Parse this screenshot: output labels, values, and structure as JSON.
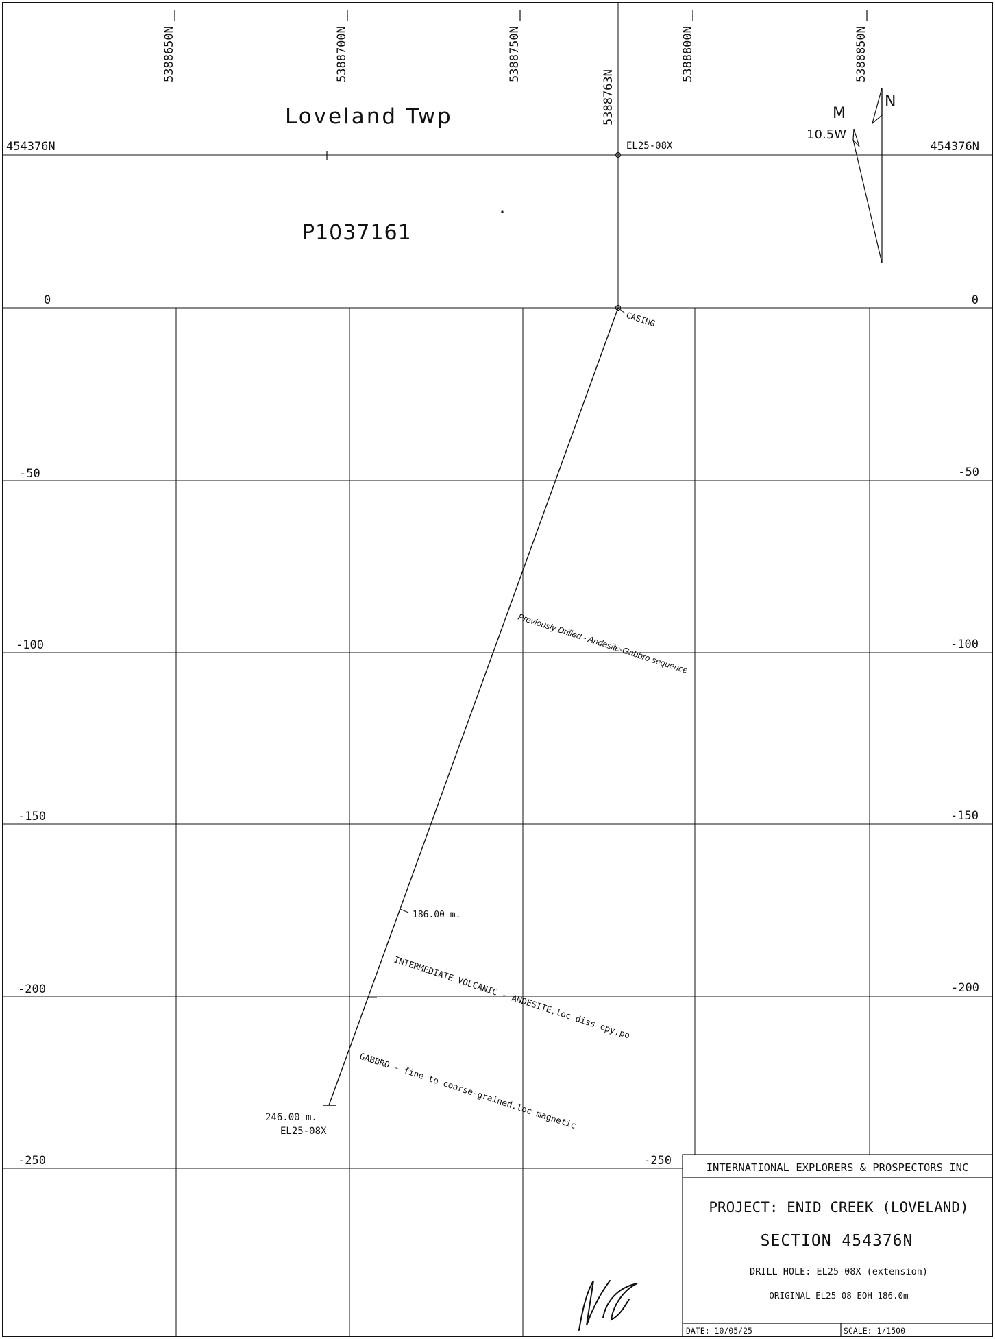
{
  "colors": {
    "ink": "#111111",
    "paper": "#ffffff"
  },
  "top_easting_labels": [
    "5388650N",
    "5388700N",
    "5388750N",
    "5388763N",
    "5388800N",
    "5388850N"
  ],
  "section_left": "454376N",
  "section_right": "454376N",
  "township": "Loveland Twp",
  "claim": "P1037161",
  "collar_label": "EL25-08X",
  "north_arrow": {
    "magnetic_label": "M",
    "true_label": "N",
    "declination": "10.5W"
  },
  "elevation_labels_left": [
    "0",
    "-50",
    "-100",
    "-150",
    "-200",
    "-250"
  ],
  "elevation_labels_right": [
    "0",
    "-50",
    "-100",
    "-150",
    "-200"
  ],
  "elevation_label_right_250": "-250",
  "hole": {
    "casing_label": "CASING",
    "depth_marker_label": "186.00 m.",
    "eoh_depth_label": "246.00 m.",
    "eoh_hole_label": "EL25-08X"
  },
  "lithology": {
    "previously_drilled": "Previously Drilled - Andesite-Gabbro sequence",
    "intermediate_volcanic": "INTERMEDIATE VOLCANIC - ANDESITE,loc diss cpy,po",
    "gabbro": "GABBRO - fine to coarse-grained,loc magnetic"
  },
  "title_block": {
    "company": "INTERNATIONAL EXPLORERS & PROSPECTORS INC",
    "project": "PROJECT: ENID CREEK (LOVELAND)",
    "section": "SECTION 454376N",
    "drill_hole": "DRILL HOLE: EL25-08X (extension)",
    "original": "ORIGINAL EL25-08 EOH 186.0m",
    "date": "DATE: 10/05/25",
    "scale": "SCALE: 1/1500"
  }
}
